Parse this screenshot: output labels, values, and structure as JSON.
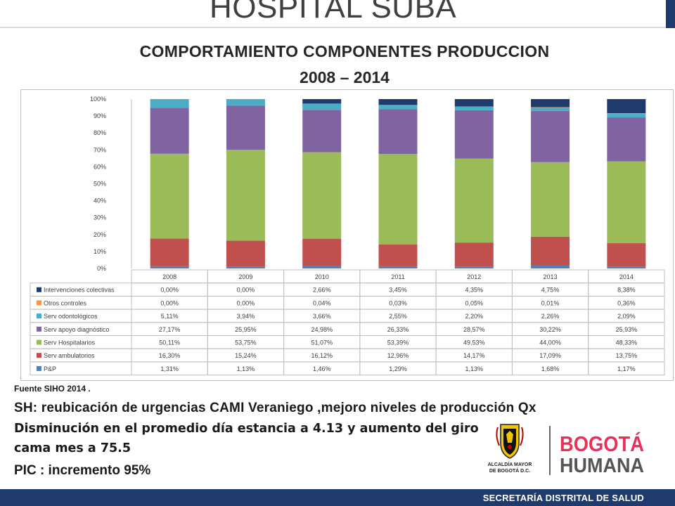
{
  "header": {
    "title": "HOSPITAL SUBA"
  },
  "slide": {
    "title_line1": "COMPORTAMIENTO COMPONENTES PRODUCCION",
    "title_line2": "2008 – 2014"
  },
  "notes": {
    "source": "Fuente SIHO 2014 .",
    "sh": "SH: reubicación de urgencias CAMI Veraniego ,mejoro niveles de producción  Qx",
    "disminucion_1": "Disminución en el promedio día estancia a 4.13 y aumento del giro",
    "disminucion_2": "cama mes a 75.5",
    "pic": "PIC : incremento  95%"
  },
  "logos": {
    "alcaldia_line1": "ALCALDÍA MAYOR",
    "alcaldia_line2": "DE BOGOTÁ D.C.",
    "bogota_line1": "BOGOTÁ",
    "bogota_line2": "HUMANA"
  },
  "footer": {
    "text": "SECRETARÍA DISTRITAL DE SALUD"
  },
  "colors": {
    "footer": "#1f3b6e",
    "title_dark": "#262626"
  },
  "chart_data": {
    "type": "bar",
    "stacked": true,
    "percent": true,
    "categories": [
      "2008",
      "2009",
      "2010",
      "2011",
      "2012",
      "2013",
      "2014"
    ],
    "ylim": [
      0,
      100
    ],
    "y_ticks": [
      "0%",
      "10%",
      "20%",
      "30%",
      "40%",
      "50%",
      "60%",
      "70%",
      "80%",
      "90%",
      "100%"
    ],
    "grid": false,
    "data_table": true,
    "series": [
      {
        "name": "P&P",
        "color": "#4f81bd",
        "values": [
          1.31,
          1.13,
          1.46,
          1.29,
          1.13,
          1.68,
          1.17
        ],
        "labels": [
          "1,31%",
          "1,13%",
          "1,46%",
          "1,29%",
          "1,13%",
          "1,68%",
          "1,17%"
        ]
      },
      {
        "name": "Serv ambulatorios",
        "color": "#c0504d",
        "values": [
          16.3,
          15.24,
          16.12,
          12.96,
          14.17,
          17.09,
          13.75
        ],
        "labels": [
          "16,30%",
          "15,24%",
          "16,12%",
          "12,96%",
          "14,17%",
          "17,09%",
          "13,75%"
        ]
      },
      {
        "name": "Serv Hospitalarios",
        "color": "#9bbb59",
        "values": [
          50.11,
          53.75,
          51.07,
          53.39,
          49.53,
          44.0,
          48.33
        ],
        "labels": [
          "50,11%",
          "53,75%",
          "51,07%",
          "53,39%",
          "49,53%",
          "44,00%",
          "48,33%"
        ]
      },
      {
        "name": "Serv apoyo diagnóstico",
        "color": "#8064a2",
        "values": [
          27.17,
          25.95,
          24.98,
          26.33,
          28.57,
          30.22,
          25.93
        ],
        "labels": [
          "27,17%",
          "25,95%",
          "24,98%",
          "26,33%",
          "28,57%",
          "30,22%",
          "25,93%"
        ]
      },
      {
        "name": "Serv odontológicos",
        "color": "#4bacc6",
        "values": [
          5.11,
          3.94,
          3.66,
          2.55,
          2.2,
          2.26,
          2.09
        ],
        "labels": [
          "5,11%",
          "3,94%",
          "3,66%",
          "2,55%",
          "2,20%",
          "2,26%",
          "2,09%"
        ]
      },
      {
        "name": "Otros controles",
        "color": "#f79646",
        "values": [
          0.0,
          0.0,
          0.04,
          0.03,
          0.05,
          0.01,
          0.36
        ],
        "labels": [
          "0,00%",
          "0,00%",
          "0,04%",
          "0,03%",
          "0,05%",
          "0,01%",
          "0,36%"
        ]
      },
      {
        "name": "Intervenciones colectivas",
        "color": "#1f3b6e",
        "values": [
          0.0,
          0.0,
          2.66,
          3.45,
          4.35,
          4.75,
          8.38
        ],
        "labels": [
          "0,00%",
          "0,00%",
          "2,66%",
          "3,45%",
          "4,35%",
          "4,75%",
          "8,38%"
        ]
      }
    ]
  }
}
